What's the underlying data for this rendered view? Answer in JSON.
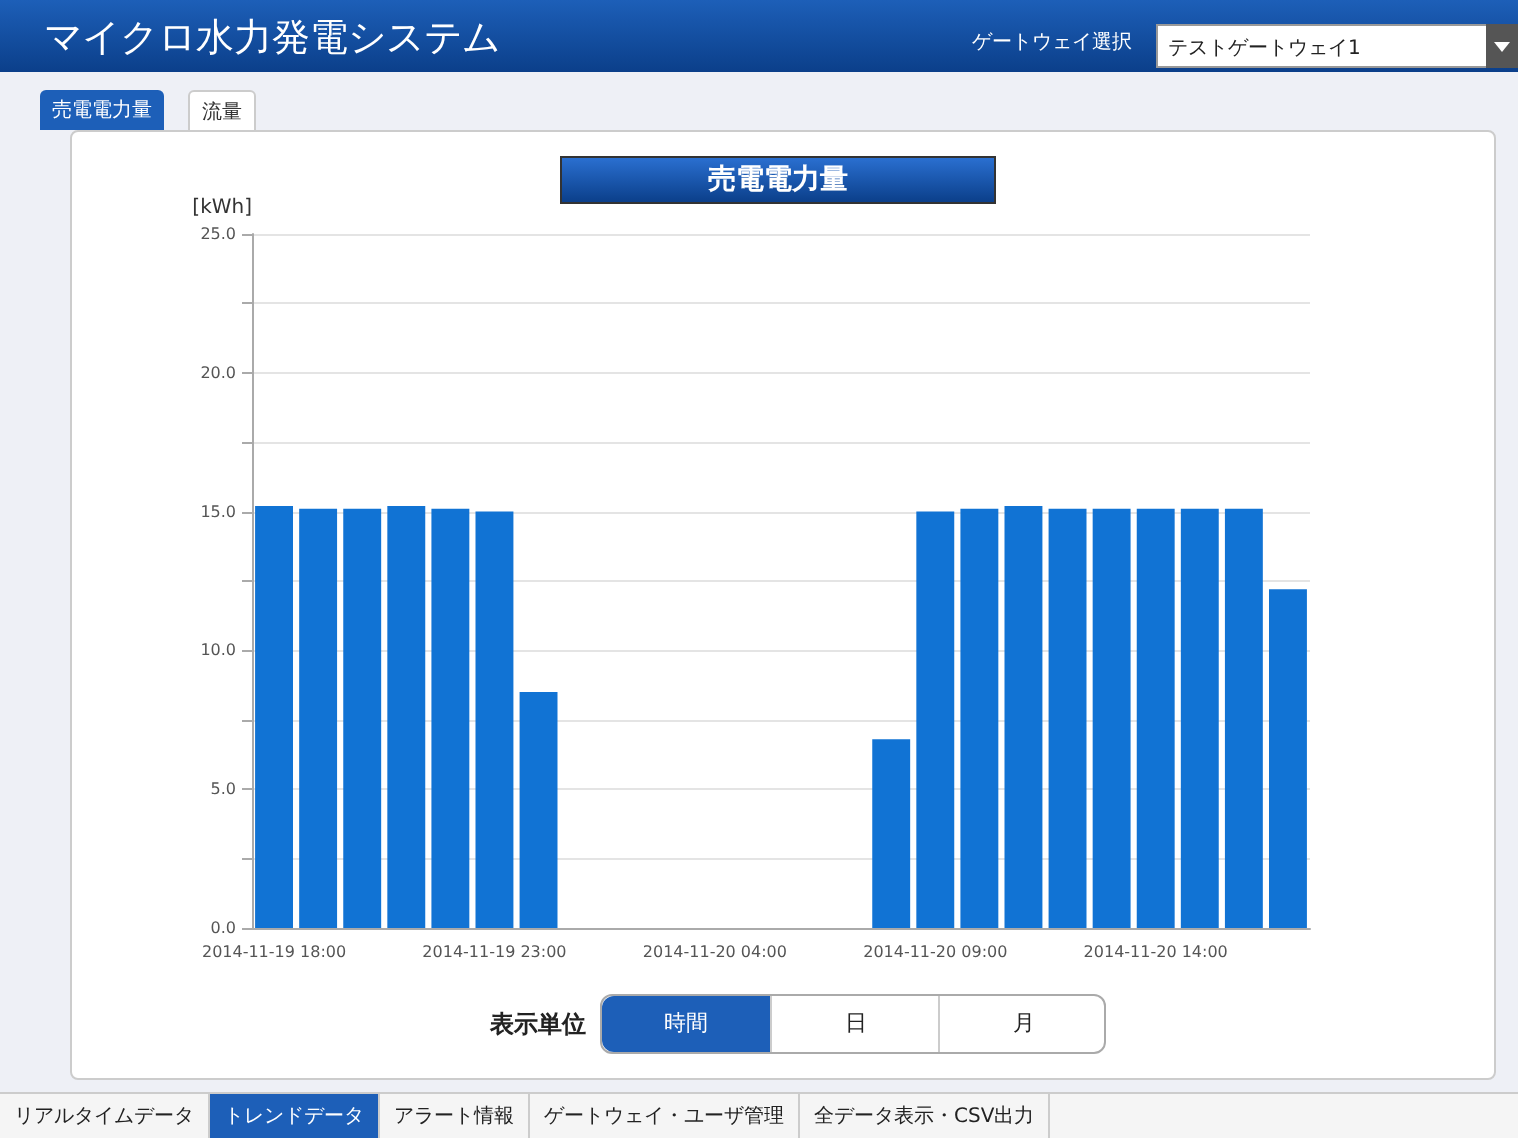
{
  "chart_data": {
    "type": "bar",
    "title": "売電電力量",
    "ylabel": "[kWh]",
    "categories": [
      "2014-11-19 18:00",
      null,
      null,
      null,
      null,
      "2014-11-19 23:00",
      null,
      null,
      null,
      null,
      "2014-11-20 04:00",
      null,
      null,
      null,
      null,
      "2014-11-20 09:00",
      null,
      null,
      null,
      null,
      "2014-11-20 14:00",
      null,
      null,
      null
    ],
    "values": [
      15.2,
      15.1,
      15.1,
      15.2,
      15.1,
      15.0,
      8.5,
      null,
      null,
      null,
      null,
      null,
      null,
      null,
      6.8,
      15.0,
      15.1,
      15.2,
      15.1,
      15.1,
      15.1,
      15.1,
      15.1,
      12.2
    ],
    "color": "#1173d4",
    "ylim": [
      0,
      25
    ],
    "yticks": [
      {
        "value": 0,
        "label": "0.0"
      },
      {
        "value": 2.5,
        "label": null
      },
      {
        "value": 5,
        "label": "5.0"
      },
      {
        "value": 7.5,
        "label": null
      },
      {
        "value": 10,
        "label": "10.0"
      },
      {
        "value": 12.5,
        "label": null
      },
      {
        "value": 15,
        "label": "15.0"
      },
      {
        "value": 17.5,
        "label": null
      },
      {
        "value": 20,
        "label": "20.0"
      },
      {
        "value": 22.5,
        "label": null
      },
      {
        "value": 25,
        "label": "25.0"
      }
    ],
    "grid": "y",
    "annotations": [
      "マイクロ水力発電システム",
      "ゲートウェイ選択",
      "テストゲートウェイ1",
      "売電電力量",
      "流量",
      "表示単位",
      "時間",
      "日",
      "月",
      "リアルタイムデータ",
      "トレンドデータ",
      "アラート情報",
      "ゲートウェイ・ユーザ管理",
      "全データ表示・CSV出力"
    ]
  }
}
